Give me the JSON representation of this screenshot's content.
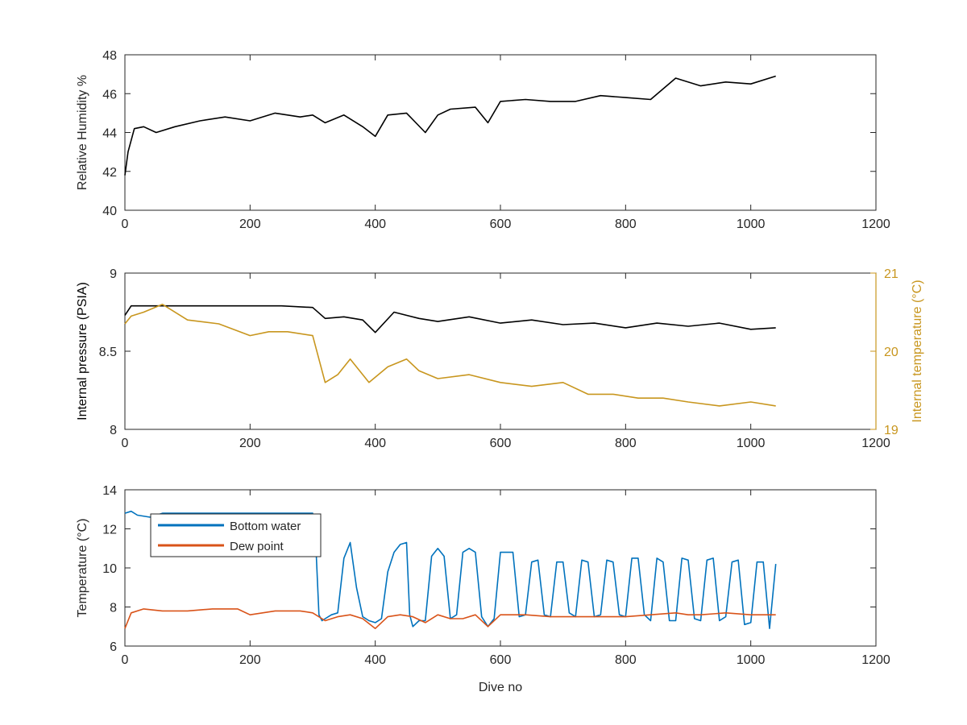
{
  "chart_data": [
    {
      "type": "line",
      "xlabel": "",
      "ylabel": "Relative Humidity %",
      "xlim": [
        0,
        1200
      ],
      "ylim": [
        40,
        48
      ],
      "xticks": [
        0,
        200,
        400,
        600,
        800,
        1000,
        1200
      ],
      "yticks": [
        40,
        42,
        44,
        46,
        48
      ],
      "series": [
        {
          "color": "#000000",
          "x": [
            0,
            5,
            15,
            30,
            50,
            80,
            120,
            160,
            200,
            240,
            280,
            300,
            320,
            350,
            380,
            400,
            420,
            450,
            480,
            500,
            520,
            560,
            580,
            600,
            640,
            680,
            720,
            760,
            800,
            840,
            880,
            920,
            960,
            1000,
            1040
          ],
          "y": [
            41.8,
            43.0,
            44.2,
            44.3,
            44.0,
            44.3,
            44.6,
            44.8,
            44.6,
            45.0,
            44.8,
            44.9,
            44.5,
            44.9,
            44.3,
            43.8,
            44.9,
            45.0,
            44.0,
            44.9,
            45.2,
            45.3,
            44.5,
            45.6,
            45.7,
            45.6,
            45.6,
            45.9,
            45.8,
            45.7,
            46.8,
            46.4,
            46.6,
            46.5,
            46.9
          ]
        }
      ]
    },
    {
      "type": "line",
      "xlabel": "",
      "ylabel": "Internal pressure (PSIA)",
      "ylabel_right": "Internal temperature (°C)",
      "xlim": [
        0,
        1200
      ],
      "ylim": [
        8,
        9
      ],
      "ylim_right": [
        19,
        21
      ],
      "xticks": [
        0,
        200,
        400,
        600,
        800,
        1000,
        1200
      ],
      "yticks": [
        8,
        8.5,
        9
      ],
      "yticks_right": [
        19,
        20,
        21
      ],
      "series": [
        {
          "axis": "left",
          "color": "#000000",
          "x": [
            0,
            10,
            50,
            100,
            150,
            200,
            250,
            300,
            320,
            350,
            380,
            400,
            430,
            470,
            500,
            550,
            600,
            650,
            700,
            750,
            800,
            850,
            900,
            950,
            1000,
            1040
          ],
          "y": [
            8.73,
            8.79,
            8.79,
            8.79,
            8.79,
            8.79,
            8.79,
            8.78,
            8.71,
            8.72,
            8.7,
            8.62,
            8.75,
            8.71,
            8.69,
            8.72,
            8.68,
            8.7,
            8.67,
            8.68,
            8.65,
            8.68,
            8.66,
            8.68,
            8.64,
            8.65
          ]
        },
        {
          "axis": "right",
          "color": "#c8961e",
          "x": [
            0,
            10,
            30,
            60,
            100,
            150,
            200,
            230,
            260,
            300,
            320,
            340,
            360,
            390,
            420,
            450,
            470,
            500,
            550,
            600,
            650,
            700,
            740,
            780,
            820,
            860,
            900,
            950,
            1000,
            1040
          ],
          "y": [
            20.35,
            20.45,
            20.5,
            20.6,
            20.4,
            20.35,
            20.2,
            20.25,
            20.25,
            20.2,
            19.6,
            19.7,
            19.9,
            19.6,
            19.8,
            19.9,
            19.75,
            19.65,
            19.7,
            19.6,
            19.55,
            19.6,
            19.45,
            19.45,
            19.4,
            19.4,
            19.35,
            19.3,
            19.35,
            19.3
          ]
        }
      ]
    },
    {
      "type": "line",
      "xlabel": "Dive no",
      "ylabel": "Temperature (°C)",
      "xlim": [
        0,
        1200
      ],
      "ylim": [
        6,
        14
      ],
      "xticks": [
        0,
        200,
        400,
        600,
        800,
        1000,
        1200
      ],
      "yticks": [
        6,
        8,
        10,
        12,
        14
      ],
      "legend": "top-left",
      "series": [
        {
          "name": "Bottom water",
          "color": "#0072bd",
          "x": [
            0,
            10,
            20,
            40,
            60,
            80,
            120,
            160,
            200,
            240,
            280,
            300,
            305,
            310,
            315,
            320,
            330,
            340,
            350,
            360,
            370,
            380,
            390,
            400,
            410,
            420,
            430,
            440,
            450,
            455,
            460,
            470,
            480,
            490,
            500,
            510,
            520,
            530,
            540,
            550,
            560,
            570,
            580,
            590,
            600,
            610,
            620,
            630,
            640,
            650,
            660,
            670,
            680,
            690,
            700,
            710,
            720,
            730,
            740,
            750,
            760,
            770,
            780,
            790,
            800,
            810,
            820,
            830,
            840,
            850,
            860,
            870,
            880,
            890,
            900,
            910,
            920,
            930,
            940,
            950,
            960,
            970,
            980,
            990,
            1000,
            1010,
            1020,
            1030,
            1040
          ],
          "y": [
            12.8,
            12.9,
            12.7,
            12.6,
            12.8,
            12.8,
            12.8,
            12.8,
            12.8,
            12.8,
            12.8,
            12.8,
            11.2,
            7.6,
            7.3,
            7.4,
            7.6,
            7.7,
            10.5,
            11.3,
            9.0,
            7.5,
            7.3,
            7.2,
            7.4,
            9.8,
            10.8,
            11.2,
            11.3,
            7.6,
            7.0,
            7.3,
            7.3,
            10.6,
            11.0,
            10.6,
            7.4,
            7.6,
            10.8,
            11.0,
            10.8,
            7.5,
            7.0,
            7.4,
            10.8,
            10.8,
            10.8,
            7.5,
            7.6,
            10.3,
            10.4,
            7.6,
            7.5,
            10.3,
            10.3,
            7.7,
            7.5,
            10.4,
            10.3,
            7.5,
            7.6,
            10.4,
            10.3,
            7.6,
            7.5,
            10.5,
            10.5,
            7.6,
            7.3,
            10.5,
            10.3,
            7.3,
            7.3,
            10.5,
            10.4,
            7.4,
            7.3,
            10.4,
            10.5,
            7.3,
            7.5,
            10.3,
            10.4,
            7.1,
            7.2,
            10.3,
            10.3,
            6.9,
            10.2
          ]
        },
        {
          "name": "Dew point",
          "color": "#d95319",
          "x": [
            0,
            10,
            30,
            60,
            100,
            140,
            180,
            200,
            240,
            280,
            300,
            320,
            340,
            360,
            380,
            400,
            420,
            440,
            460,
            480,
            500,
            520,
            540,
            560,
            580,
            600,
            640,
            680,
            720,
            760,
            800,
            840,
            880,
            900,
            920,
            960,
            1000,
            1040
          ],
          "y": [
            6.9,
            7.7,
            7.9,
            7.8,
            7.8,
            7.9,
            7.9,
            7.6,
            7.8,
            7.8,
            7.7,
            7.3,
            7.5,
            7.6,
            7.4,
            6.9,
            7.5,
            7.6,
            7.5,
            7.2,
            7.6,
            7.4,
            7.4,
            7.6,
            7.0,
            7.6,
            7.6,
            7.5,
            7.5,
            7.5,
            7.5,
            7.6,
            7.7,
            7.6,
            7.6,
            7.7,
            7.6,
            7.6
          ]
        }
      ]
    }
  ]
}
